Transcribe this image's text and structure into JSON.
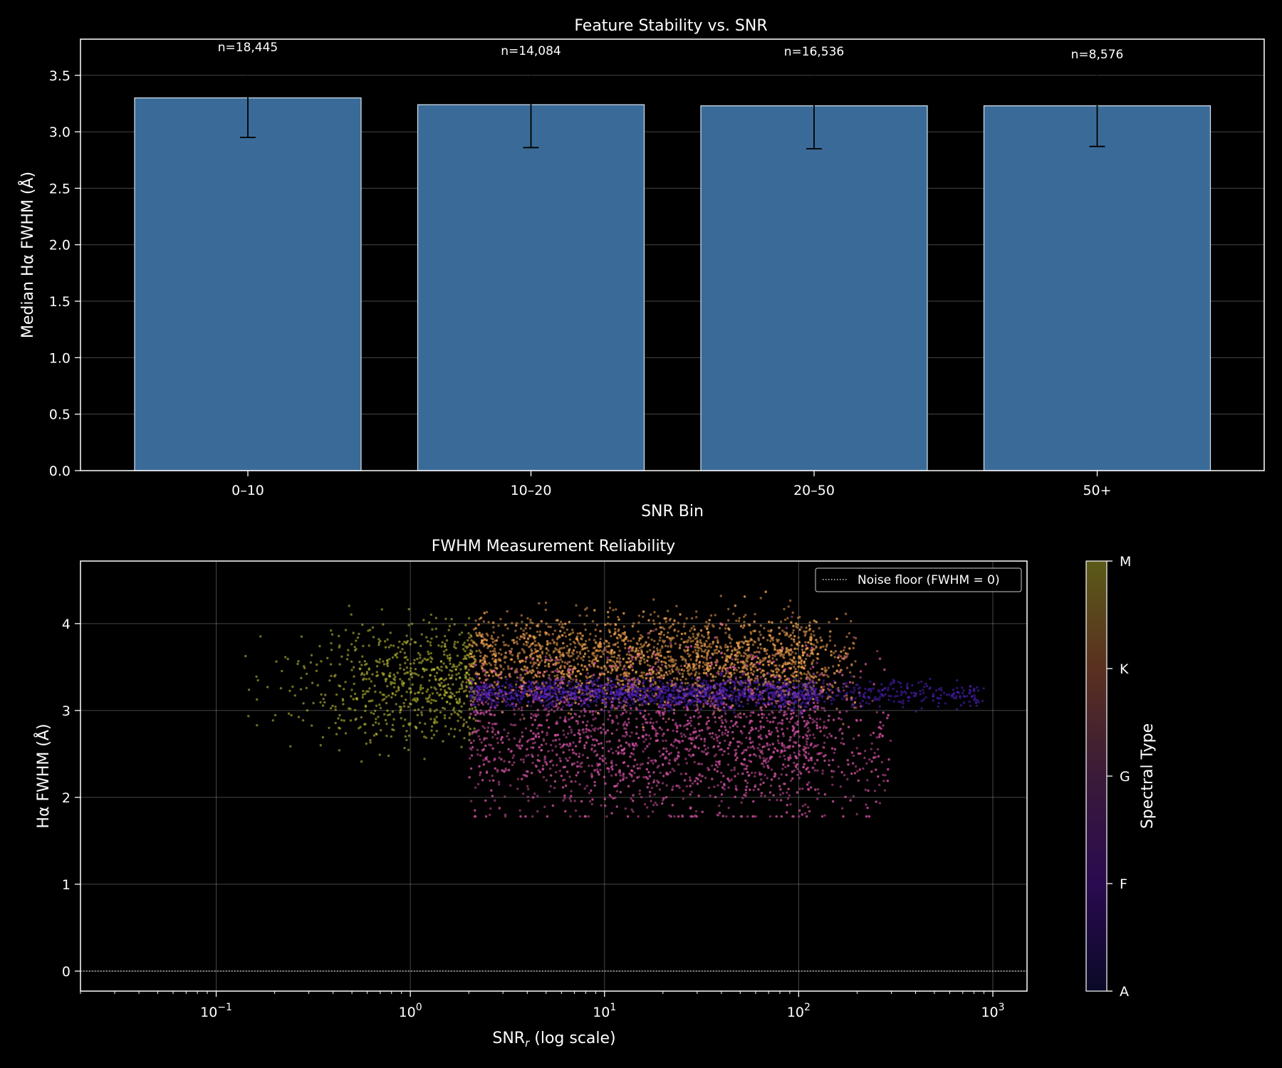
{
  "chart_data": [
    {
      "type": "bar",
      "title": "Feature Stability vs. SNR",
      "xlabel": "SNR Bin",
      "ylabel": "Median Hα FWHM (Å)",
      "categories": [
        "0–10",
        "10–20",
        "20–50",
        "50+"
      ],
      "values": [
        3.3,
        3.24,
        3.23,
        3.23
      ],
      "error_low": [
        2.95,
        2.86,
        2.85,
        2.87
      ],
      "error_high": [
        3.5,
        3.5,
        3.5,
        3.5
      ],
      "annotations": [
        "n=18,445",
        "n=14,084",
        "n=16,536",
        "n=8,576"
      ],
      "ylim": [
        0,
        3.82
      ],
      "yticks": [
        0.0,
        0.5,
        1.0,
        1.5,
        2.0,
        2.5,
        3.0,
        3.5
      ],
      "ytick_labels": [
        "0.0",
        "0.5",
        "1.0",
        "1.5",
        "2.0",
        "2.5",
        "3.0",
        "3.5"
      ],
      "grid": "y",
      "bar_color": "#3a6b98",
      "background": "#000000"
    },
    {
      "type": "scatter",
      "title": "FWHM Measurement Reliability",
      "xlabel": "SNR",
      "xlabel_subscript": "r",
      "xlabel_suffix": " (log scale)",
      "ylabel": "Hα FWHM (Å)",
      "x_scale": "log",
      "xlim": [
        0.02,
        1500
      ],
      "ylim": [
        -0.23,
        4.72
      ],
      "xtick_base": "10",
      "xtick_exponents": [
        "−1",
        "0",
        "1",
        "2",
        "3"
      ],
      "xtick_values": [
        0.1,
        1,
        10,
        100,
        1000
      ],
      "yticks": [
        0,
        1,
        2,
        3,
        4
      ],
      "ytick_labels": [
        "0",
        "1",
        "2",
        "3",
        "4"
      ],
      "grid": "both",
      "reference_line": {
        "y": 0,
        "style": "dotted",
        "label": "Noise floor (FWHM = 0)"
      },
      "legend_position": "top-right",
      "colorbar": {
        "label": "Spectral Type",
        "tick_labels": [
          "A",
          "F",
          "G",
          "K",
          "M"
        ],
        "colormap": "plasma-dark"
      },
      "clusters": [
        {
          "spectral": "M",
          "color": "#c8c83a",
          "x_range": [
            0.03,
            2.2
          ],
          "y_center": 3.3,
          "y_spread": 0.35,
          "count": 700
        },
        {
          "spectral": "K",
          "color": "#f0a050",
          "x_range": [
            2,
            200
          ],
          "y_center": 3.6,
          "y_spread": 0.25,
          "count": 2600
        },
        {
          "spectral": "G",
          "color": "#d050a0",
          "x_range": [
            2,
            300
          ],
          "y_center": 2.7,
          "y_spread": 0.45,
          "count": 2800
        },
        {
          "spectral": "F",
          "color": "#5020c0",
          "x_range": [
            2,
            900
          ],
          "y_center": 3.2,
          "y_spread": 0.08,
          "count": 1500
        }
      ],
      "clip_values": [
        1.78,
        4.5
      ]
    }
  ]
}
